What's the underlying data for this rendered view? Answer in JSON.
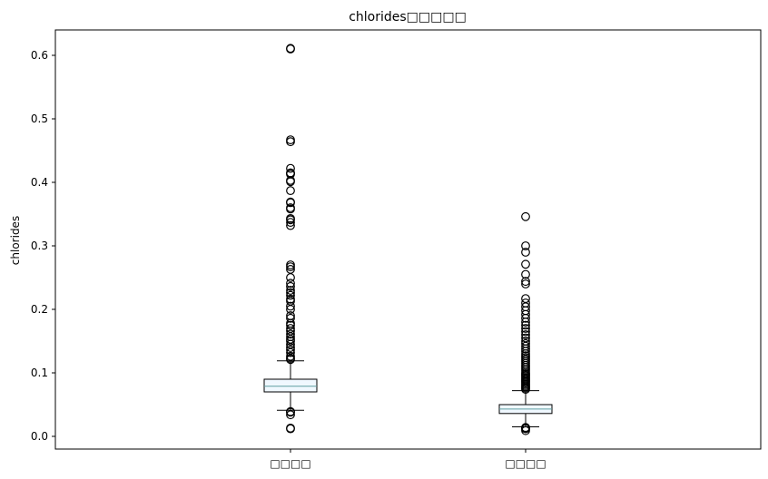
{
  "chart_data": {
    "type": "box",
    "title": "chlorides□□□□□",
    "xlabel": "",
    "ylabel": "chlorides",
    "ylim": [
      -0.02,
      0.64
    ],
    "yticks": [
      "0.0",
      "0.1",
      "0.2",
      "0.3",
      "0.4",
      "0.5",
      "0.6"
    ],
    "categories": [
      "□□□□",
      "□□□□"
    ],
    "box_fill": "#f0f8ff",
    "median_color": "#5f9ea0",
    "boxes": [
      {
        "label": "□□□□",
        "whisker_low": 0.041,
        "q1": 0.07,
        "median": 0.079,
        "q3": 0.09,
        "whisker_high": 0.119,
        "fliers": [
          0.012,
          0.013,
          0.034,
          0.038,
          0.039,
          0.121,
          0.123,
          0.126,
          0.132,
          0.136,
          0.14,
          0.145,
          0.15,
          0.153,
          0.157,
          0.161,
          0.166,
          0.17,
          0.175,
          0.178,
          0.186,
          0.19,
          0.2,
          0.205,
          0.213,
          0.216,
          0.222,
          0.226,
          0.23,
          0.236,
          0.241,
          0.25,
          0.263,
          0.267,
          0.27,
          0.332,
          0.337,
          0.341,
          0.343,
          0.358,
          0.36,
          0.368,
          0.369,
          0.387,
          0.401,
          0.403,
          0.413,
          0.414,
          0.415,
          0.422,
          0.464,
          0.467,
          0.61,
          0.611
        ]
      },
      {
        "label": "□□□□",
        "whisker_low": 0.015,
        "q1": 0.036,
        "median": 0.043,
        "q3": 0.05,
        "whisker_high": 0.072,
        "fliers": [
          0.009,
          0.012,
          0.013,
          0.014,
          0.074,
          0.076,
          0.078,
          0.08,
          0.082,
          0.084,
          0.086,
          0.088,
          0.09,
          0.092,
          0.094,
          0.096,
          0.098,
          0.1,
          0.103,
          0.106,
          0.109,
          0.112,
          0.115,
          0.118,
          0.121,
          0.124,
          0.127,
          0.13,
          0.134,
          0.138,
          0.142,
          0.146,
          0.15,
          0.155,
          0.16,
          0.165,
          0.17,
          0.175,
          0.18,
          0.186,
          0.192,
          0.198,
          0.204,
          0.21,
          0.217,
          0.24,
          0.244,
          0.255,
          0.271,
          0.29,
          0.3,
          0.346
        ]
      }
    ]
  }
}
